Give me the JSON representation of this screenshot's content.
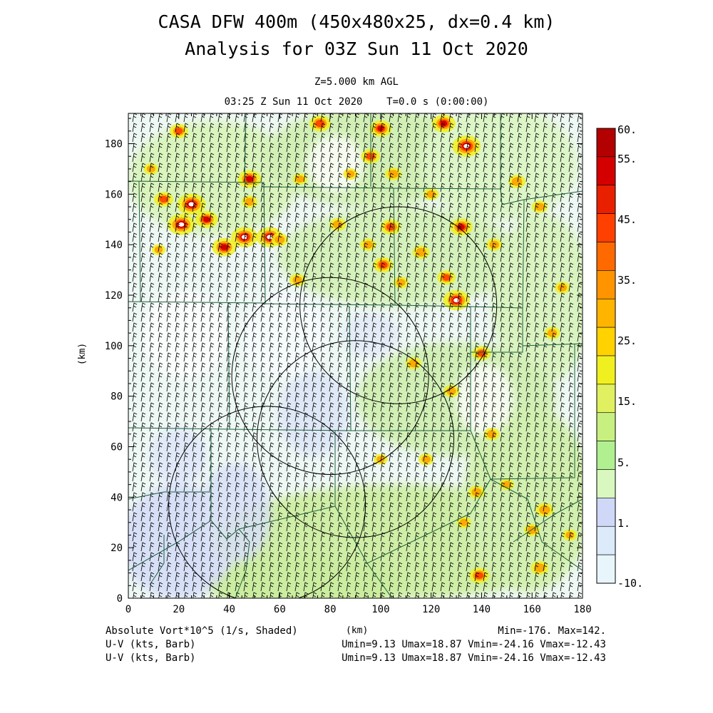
{
  "title": {
    "line1": "CASA DFW 400m (450x480x25, dx=0.4 km)",
    "line2": "Analysis for 03Z Sun 11 Oct 2020"
  },
  "subtitle": {
    "level": "Z=5.000 km AGL",
    "time": "03:25 Z Sun 11 Oct 2020    T=0.0 s (0:00:00)"
  },
  "axes": {
    "xlabel": "(km)",
    "ylabel": "(km)",
    "x_ticks": [
      0,
      20,
      40,
      60,
      80,
      100,
      120,
      140,
      160,
      180
    ],
    "y_ticks": [
      0,
      20,
      40,
      60,
      80,
      100,
      120,
      140,
      160,
      180
    ],
    "xlim": [
      0,
      180
    ],
    "ylim": [
      0,
      192
    ]
  },
  "colorbar": {
    "labels": [
      "60.",
      "55.",
      "45.",
      "35.",
      "25.",
      "15.",
      "5.",
      "1.",
      "-10."
    ],
    "colors": [
      "#b30000",
      "#d40000",
      "#e82000",
      "#ff4000",
      "#ff6a00",
      "#ff9400",
      "#ffb400",
      "#ffd200",
      "#f0f020",
      "#e0f060",
      "#c8f080",
      "#b0f090",
      "#d8f8c0",
      "#d0d8f8",
      "#dceafa",
      "#e8f6fc"
    ]
  },
  "footer": {
    "field1": "Absolute Vort*10^5 (1/s, Shaded)",
    "xunits": "(km)",
    "minmax": "Min=-176. Max=142.",
    "field2": "U-V (kts, Barb)",
    "uv2": "Umin=9.13 Umax=18.87 Vmin=-24.16 Vmax=-12.43",
    "field3": "U-V (kts, Barb)",
    "uv3": "Umin=9.13 Umax=18.87 Vmin=-24.16 Vmax=-12.43"
  },
  "radar_rings_km": [
    {
      "cx": 55,
      "cy": 37,
      "r": 39
    },
    {
      "cx": 90,
      "cy": 63,
      "r": 39
    },
    {
      "cx": 80,
      "cy": 88,
      "r": 39
    },
    {
      "cx": 107,
      "cy": 116,
      "r": 39
    }
  ],
  "hotspots_km": [
    {
      "x": 25,
      "y": 156,
      "v": 60
    },
    {
      "x": 21,
      "y": 148,
      "v": 58
    },
    {
      "x": 134,
      "y": 179,
      "v": 60
    },
    {
      "x": 46,
      "y": 143,
      "v": 55
    },
    {
      "x": 56,
      "y": 143,
      "v": 55
    },
    {
      "x": 38,
      "y": 139,
      "v": 48
    },
    {
      "x": 130,
      "y": 118,
      "v": 55
    },
    {
      "x": 48,
      "y": 166,
      "v": 45
    },
    {
      "x": 31,
      "y": 150,
      "v": 42
    },
    {
      "x": 125,
      "y": 188,
      "v": 45
    },
    {
      "x": 100,
      "y": 186,
      "v": 40
    },
    {
      "x": 76,
      "y": 188,
      "v": 38
    },
    {
      "x": 132,
      "y": 147,
      "v": 42
    },
    {
      "x": 101,
      "y": 132,
      "v": 35
    },
    {
      "x": 104,
      "y": 147,
      "v": 35
    },
    {
      "x": 14,
      "y": 158,
      "v": 32
    },
    {
      "x": 20,
      "y": 185,
      "v": 30
    },
    {
      "x": 140,
      "y": 97,
      "v": 30
    },
    {
      "x": 139,
      "y": 9,
      "v": 35
    },
    {
      "x": 163,
      "y": 12,
      "v": 28
    },
    {
      "x": 165,
      "y": 35,
      "v": 28
    },
    {
      "x": 126,
      "y": 127,
      "v": 30
    },
    {
      "x": 96,
      "y": 175,
      "v": 32
    },
    {
      "x": 116,
      "y": 137,
      "v": 26
    },
    {
      "x": 154,
      "y": 165,
      "v": 26
    },
    {
      "x": 83,
      "y": 148,
      "v": 24
    },
    {
      "x": 60,
      "y": 142,
      "v": 24
    },
    {
      "x": 67,
      "y": 126,
      "v": 22
    },
    {
      "x": 48,
      "y": 157,
      "v": 22
    },
    {
      "x": 144,
      "y": 65,
      "v": 22
    },
    {
      "x": 138,
      "y": 42,
      "v": 24
    },
    {
      "x": 160,
      "y": 27,
      "v": 22
    },
    {
      "x": 118,
      "y": 55,
      "v": 20
    },
    {
      "x": 128,
      "y": 82,
      "v": 22
    },
    {
      "x": 113,
      "y": 93,
      "v": 22
    },
    {
      "x": 168,
      "y": 105,
      "v": 22
    },
    {
      "x": 163,
      "y": 155,
      "v": 22
    },
    {
      "x": 172,
      "y": 123,
      "v": 20
    },
    {
      "x": 145,
      "y": 140,
      "v": 22
    },
    {
      "x": 120,
      "y": 160,
      "v": 20
    },
    {
      "x": 88,
      "y": 168,
      "v": 18
    },
    {
      "x": 68,
      "y": 166,
      "v": 18
    },
    {
      "x": 9,
      "y": 170,
      "v": 18
    },
    {
      "x": 12,
      "y": 138,
      "v": 16
    },
    {
      "x": 105,
      "y": 168,
      "v": 25
    },
    {
      "x": 95,
      "y": 140,
      "v": 22
    },
    {
      "x": 108,
      "y": 125,
      "v": 20
    },
    {
      "x": 150,
      "y": 45,
      "v": 18
    },
    {
      "x": 133,
      "y": 30,
      "v": 18
    },
    {
      "x": 175,
      "y": 25,
      "v": 18
    },
    {
      "x": 100,
      "y": 55,
      "v": 16
    }
  ]
}
